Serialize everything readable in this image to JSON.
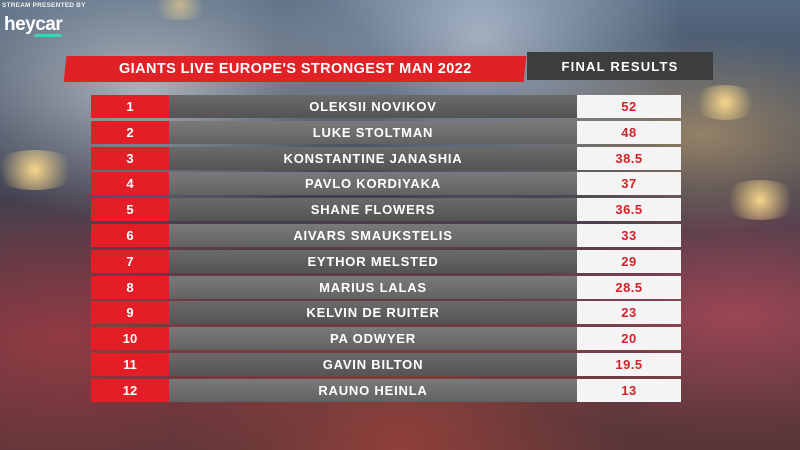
{
  "sponsor": {
    "caption": "STREAM PRESENTED BY",
    "logo": "heycar"
  },
  "header": {
    "title": "GIANTS LIVE EUROPE'S STRONGEST MAN 2022",
    "subtitle": "FINAL RESULTS"
  },
  "colors": {
    "accent_red": "#e02226",
    "name_bar": "#5e5e5e",
    "points_bg": "#f4f4f4",
    "points_text": "#d2232a",
    "subtitle_bg": "#3d3d3d",
    "sponsor_underline": "#3fd1b0"
  },
  "results": [
    {
      "rank": "1",
      "name": "OLEKSII NOVIKOV",
      "points": "52"
    },
    {
      "rank": "2",
      "name": "LUKE STOLTMAN",
      "points": "48"
    },
    {
      "rank": "3",
      "name": "KONSTANTINE JANASHIA",
      "points": "38.5"
    },
    {
      "rank": "4",
      "name": "PAVLO KORDIYAKA",
      "points": "37"
    },
    {
      "rank": "5",
      "name": "SHANE FLOWERS",
      "points": "36.5"
    },
    {
      "rank": "6",
      "name": "AIVARS SMAUKSTELIS",
      "points": "33"
    },
    {
      "rank": "7",
      "name": "EYTHOR MELSTED",
      "points": "29"
    },
    {
      "rank": "8",
      "name": "MARIUS LALAS",
      "points": "28.5"
    },
    {
      "rank": "9",
      "name": "KELVIN DE RUITER",
      "points": "23"
    },
    {
      "rank": "10",
      "name": "PA ODWYER",
      "points": "20"
    },
    {
      "rank": "11",
      "name": "GAVIN BILTON",
      "points": "19.5"
    },
    {
      "rank": "12",
      "name": "RAUNO HEINLA",
      "points": "13"
    }
  ]
}
